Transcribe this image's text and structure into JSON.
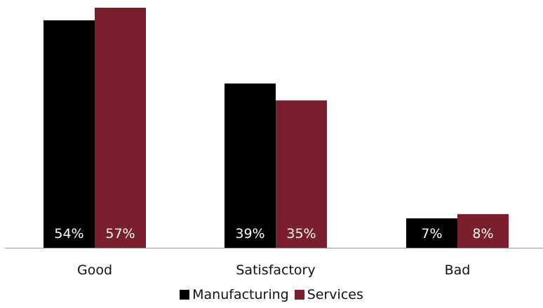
{
  "chart_data": {
    "type": "bar",
    "categories": [
      "Good",
      "Satisfactory",
      "Bad"
    ],
    "series": [
      {
        "name": "Manufacturing",
        "values": [
          54,
          39,
          7
        ],
        "labels": [
          "54%",
          "39%",
          "7%"
        ],
        "color": "#000000"
      },
      {
        "name": "Services",
        "values": [
          57,
          35,
          8
        ],
        "labels": [
          "57%",
          "35%",
          "8%"
        ],
        "color": "#7a1f2b"
      }
    ],
    "ylim": [
      0,
      57
    ],
    "label_color": "#ffffff",
    "grid": false,
    "legend_position": "bottom"
  }
}
